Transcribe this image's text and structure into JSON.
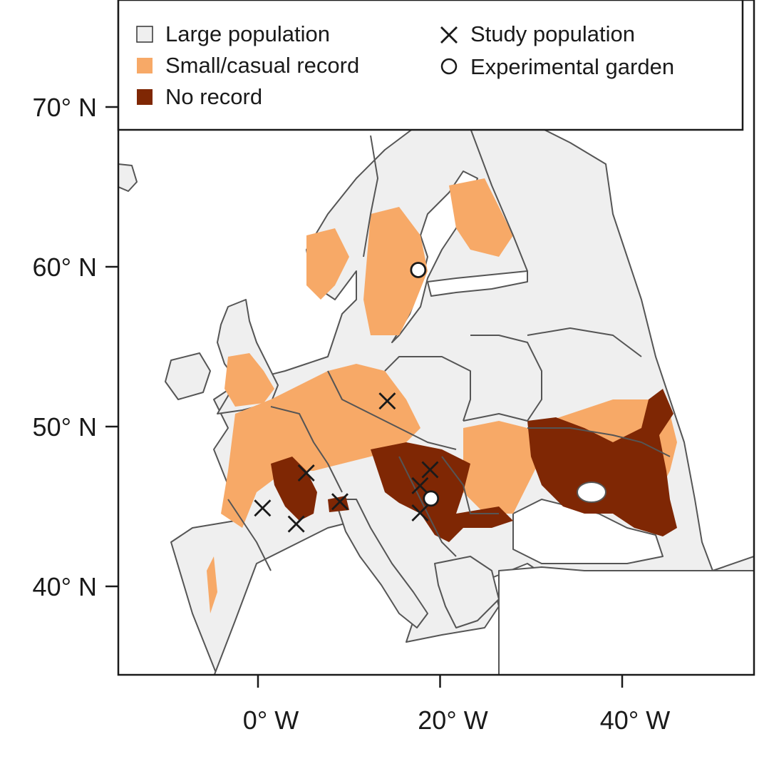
{
  "map": {
    "x_axis": {
      "tick_labels": [
        "0° W",
        "20° W",
        "40° W"
      ],
      "tick_values": [
        0,
        20,
        40
      ],
      "range": [
        -15,
        55
      ]
    },
    "y_axis": {
      "tick_labels": [
        "40° N",
        "50° N",
        "60° N",
        "70° N"
      ],
      "tick_values": [
        40,
        50,
        60,
        70
      ],
      "range": [
        34.5,
        76
      ]
    },
    "legend": {
      "placement": "top",
      "items": [
        {
          "label": "Large population",
          "symbol": "square",
          "color": "#efefef"
        },
        {
          "label": "Small/casual record",
          "symbol": "square",
          "color": "#f7a967"
        },
        {
          "label": "No record",
          "symbol": "square",
          "color": "#7f2704"
        },
        {
          "label": "Study population",
          "symbol": "cross",
          "color": "#1a1a1a"
        },
        {
          "label": "Experimental garden",
          "symbol": "circle",
          "color": "#ffffff"
        }
      ]
    },
    "colors": {
      "large_population": "#efefef",
      "small_casual_record": "#f7a967",
      "no_record": "#7f2704",
      "border": "#555555"
    },
    "study_populations": [
      {
        "lon": 0.5,
        "lat": 44.9
      },
      {
        "lon": 4.2,
        "lat": 43.9
      },
      {
        "lon": 5.3,
        "lat": 47.1
      },
      {
        "lon": 9.0,
        "lat": 45.3
      },
      {
        "lon": 14.2,
        "lat": 51.6
      },
      {
        "lon": 17.8,
        "lat": 46.3
      },
      {
        "lon": 18.9,
        "lat": 47.3
      },
      {
        "lon": 17.8,
        "lat": 44.6
      }
    ],
    "experimental_gardens": [
      {
        "lon": 17.6,
        "lat": 59.8
      },
      {
        "lon": 19.0,
        "lat": 45.5
      }
    ]
  }
}
